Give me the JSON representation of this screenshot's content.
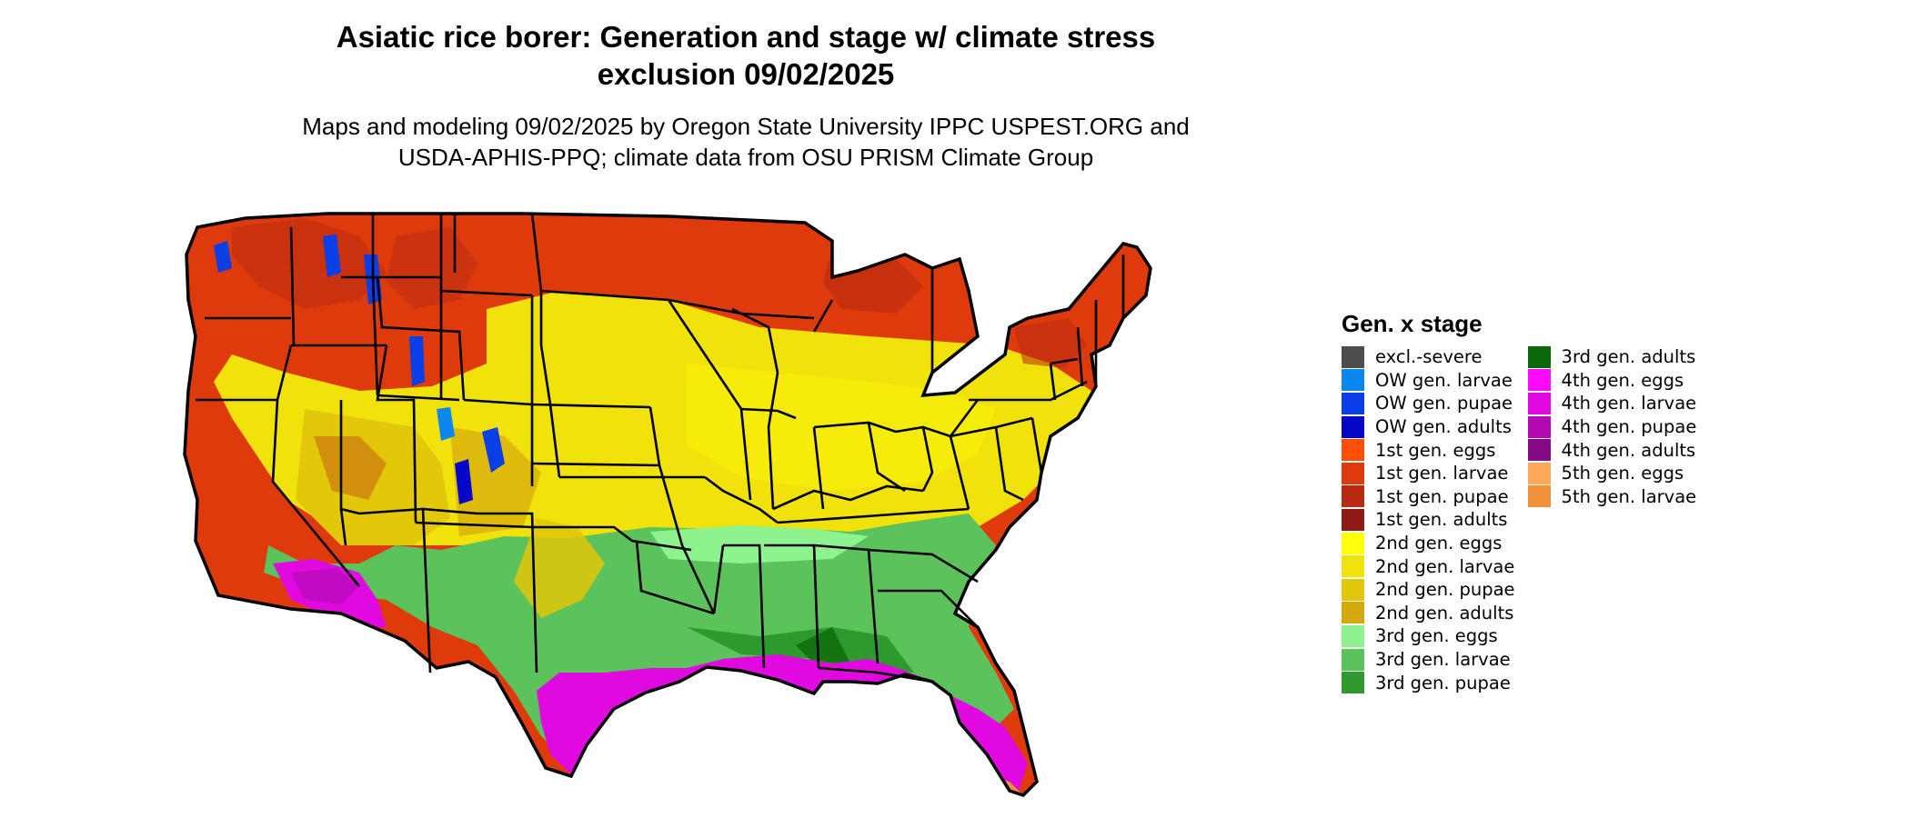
{
  "map": {
    "title_line1": "Asiatic rice borer: Generation and stage w/ climate stress",
    "title_line2": "exclusion 09/02/2025",
    "subtitle_line1": "Maps and modeling 09/02/2025 by Oregon State University IPPC USPEST.ORG and",
    "subtitle_line2": "USDA-APHIS-PPQ; climate data from OSU PRISM Climate Group"
  },
  "legend": {
    "title": "Gen. x stage",
    "items": [
      {
        "label": "excl.-severe",
        "color": "#4d4d4d"
      },
      {
        "label": "OW gen. larvae",
        "color": "#0a86ef"
      },
      {
        "label": "OW gen. pupae",
        "color": "#0a3ee6"
      },
      {
        "label": "OW gen. adults",
        "color": "#0606c8"
      },
      {
        "label": "1st gen. eggs",
        "color": "#fd4f06"
      },
      {
        "label": "1st gen. larvae",
        "color": "#de3a0c"
      },
      {
        "label": "1st gen. pupae",
        "color": "#b82a12"
      },
      {
        "label": "1st gen. adults",
        "color": "#8e1a16"
      },
      {
        "label": "2nd gen. eggs",
        "color": "#ffff0a"
      },
      {
        "label": "2nd gen. larvae",
        "color": "#f0e20a"
      },
      {
        "label": "2nd gen. pupae",
        "color": "#e2c70a"
      },
      {
        "label": "2nd gen. adults",
        "color": "#d4a90c"
      },
      {
        "label": "3rd gen. eggs",
        "color": "#8ef28e"
      },
      {
        "label": "3rd gen. larvae",
        "color": "#5cc25c"
      },
      {
        "label": "3rd gen. pupae",
        "color": "#2e9a2e"
      },
      {
        "label": "3rd gen. adults",
        "color": "#0a6a0a"
      },
      {
        "label": "4th gen. eggs",
        "color": "#ff0aff"
      },
      {
        "label": "4th gen. larvae",
        "color": "#e00ae0"
      },
      {
        "label": "4th gen. pupae",
        "color": "#b40ab4"
      },
      {
        "label": "4th gen. adults",
        "color": "#860a86"
      },
      {
        "label": "5th gen. eggs",
        "color": "#ffa858"
      },
      {
        "label": "5th gen. larvae",
        "color": "#f0923a"
      }
    ]
  }
}
